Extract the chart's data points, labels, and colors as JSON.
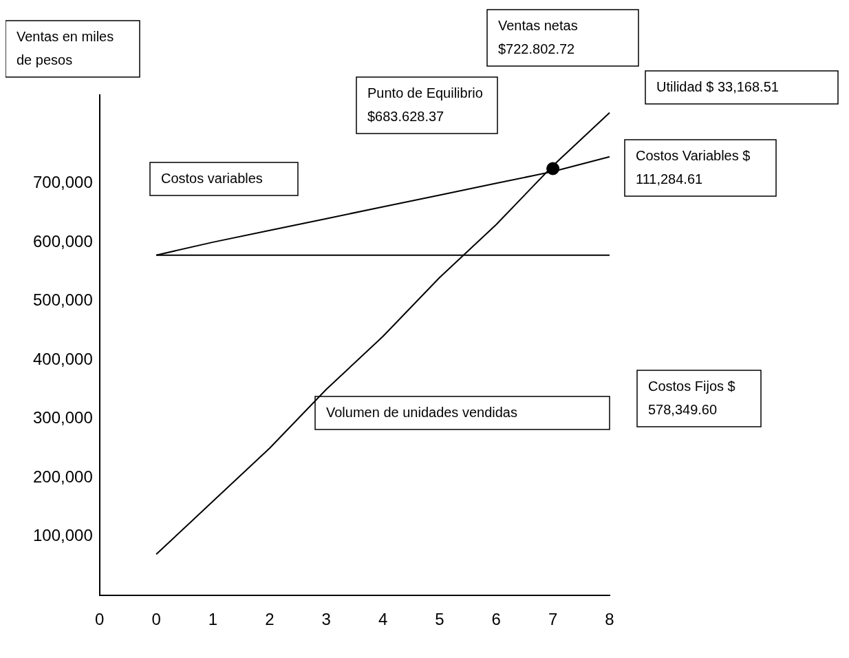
{
  "chart_data": {
    "type": "line",
    "xlabel": "Volumen de unidades vendidas",
    "ylabel": "Ventas en miles de pesos",
    "categories": [
      "0",
      "0",
      "1",
      "2",
      "3",
      "4",
      "5",
      "6",
      "7",
      "8"
    ],
    "series": [
      {
        "type": "line",
        "color": "#000000",
        "values": [
          null,
          70000,
          160000,
          250000,
          350000,
          440000,
          540000,
          630000,
          730000,
          820000
        ]
      },
      {
        "type": "line",
        "color": "#000000",
        "values": [
          null,
          578000,
          600000,
          620000,
          640000,
          660000,
          680000,
          700000,
          720000,
          745000
        ]
      },
      {
        "type": "line",
        "color": "#000000",
        "values": [
          null,
          578000,
          578000,
          578000,
          578000,
          578000,
          578000,
          578000,
          578000,
          578000
        ]
      },
      {
        "type": "scatter",
        "color": "#000000",
        "marker": "circle",
        "x": [
          "7"
        ],
        "values": [
          725000
        ]
      }
    ],
    "ylim": [
      0,
      850000
    ],
    "yticks": [
      {
        "value": 100000,
        "label": "100,000"
      },
      {
        "value": 200000,
        "label": "200,000"
      },
      {
        "value": 300000,
        "label": "300,000"
      },
      {
        "value": 400000,
        "label": "400,000"
      },
      {
        "value": 500000,
        "label": "500,000"
      },
      {
        "value": 600000,
        "label": "600,000"
      },
      {
        "value": 700000,
        "label": "700,000"
      }
    ],
    "grid": false,
    "legend": false,
    "marker": "none",
    "annotations": [
      "Costos variables",
      "Punto de Equilibrio $683.628.37",
      "Ventas netas $722.802.72",
      "Utilidad $ 33,168.51",
      "Costos Variables $ 111,284.61",
      "Costos Fijos $ 578,349.60"
    ]
  }
}
